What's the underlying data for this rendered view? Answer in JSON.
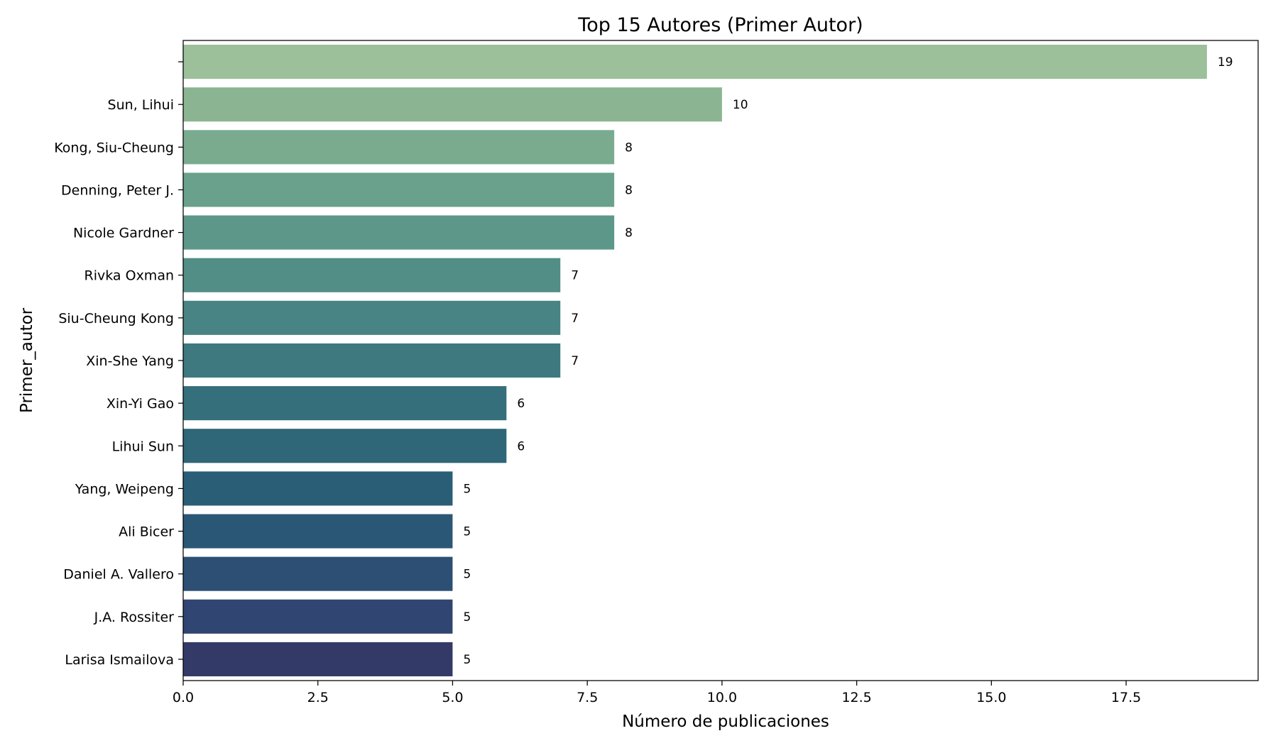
{
  "chart_data": {
    "type": "bar",
    "orientation": "horizontal",
    "title": "Top 15 Autores (Primer Autor)",
    "xlabel": "Número de publicaciones",
    "ylabel": "Primer_autor",
    "xlim": [
      0,
      19.95
    ],
    "xticks": [
      "0.0",
      "2.5",
      "5.0",
      "7.5",
      "10.0",
      "12.5",
      "15.0",
      "17.5"
    ],
    "grid": false,
    "legend": "none",
    "categories": [
      "",
      "Sun, Lihui",
      "Kong, Siu-Cheung",
      "Denning, Peter J.",
      "Nicole Gardner",
      "Rivka Oxman",
      "Siu-Cheung Kong",
      "Xin-She Yang",
      "Xin-Yi Gao",
      "Lihui Sun",
      "Yang, Weipeng",
      "Ali Bicer",
      "Daniel A. Vallero",
      "J.A. Rossiter",
      "Larisa Ismailova"
    ],
    "values": [
      19,
      10,
      8,
      8,
      8,
      7,
      7,
      7,
      6,
      6,
      5,
      5,
      5,
      5,
      5
    ],
    "data_labels": [
      "19",
      "10",
      "8",
      "8",
      "8",
      "7",
      "7",
      "7",
      "6",
      "6",
      "5",
      "5",
      "5",
      "5",
      "5"
    ],
    "colors": [
      "#9cc09a",
      "#8bb592",
      "#7aab8f",
      "#6aa18c",
      "#5d978a",
      "#528d86",
      "#488483",
      "#3d797f",
      "#356f7b",
      "#2f6678",
      "#2a5e77",
      "#2b5776",
      "#2d4f74",
      "#304571",
      "#343a67"
    ]
  }
}
